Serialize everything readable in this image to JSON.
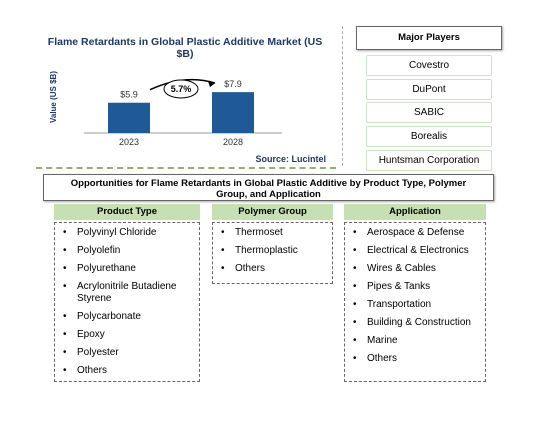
{
  "chart_data": {
    "type": "bar",
    "title": "Flame Retardants in Global Plastic Additive Market (US $B)",
    "y_label": "Value (US $B)",
    "categories": [
      "2023",
      "2028"
    ],
    "values": [
      5.9,
      7.9
    ],
    "value_labels": [
      "$5.9",
      "$7.9"
    ],
    "color": "#1f5a96",
    "growth_label": "5.7%",
    "source": "Source: Lucintel"
  },
  "players": {
    "title": "Major Players",
    "items": [
      "Covestro",
      "DuPont",
      "SABIC",
      "Borealis",
      "Huntsman Corporation"
    ]
  },
  "opportunities": {
    "title": "Opportunities for Flame Retardants in Global Plastic Additive by Product Type, Polymer Group, and Application",
    "columns": [
      {
        "title": "Product Type",
        "items": [
          "Polyvinyl Chloride",
          "Polyolefin",
          "Polyurethane",
          "Acrylonitrile Butadiene Styrene",
          "Polycarbonate",
          "Epoxy",
          "Polyester",
          "Others"
        ]
      },
      {
        "title": "Polymer Group",
        "items": [
          "Thermoset",
          "Thermoplastic",
          "Others"
        ]
      },
      {
        "title": "Application",
        "items": [
          "Aerospace & Defense",
          "Electrical & Electronics",
          "Wires & Cables",
          "Pipes & Tanks",
          "Transportation",
          "Building & Construction",
          "Marine",
          "Others"
        ]
      }
    ]
  }
}
